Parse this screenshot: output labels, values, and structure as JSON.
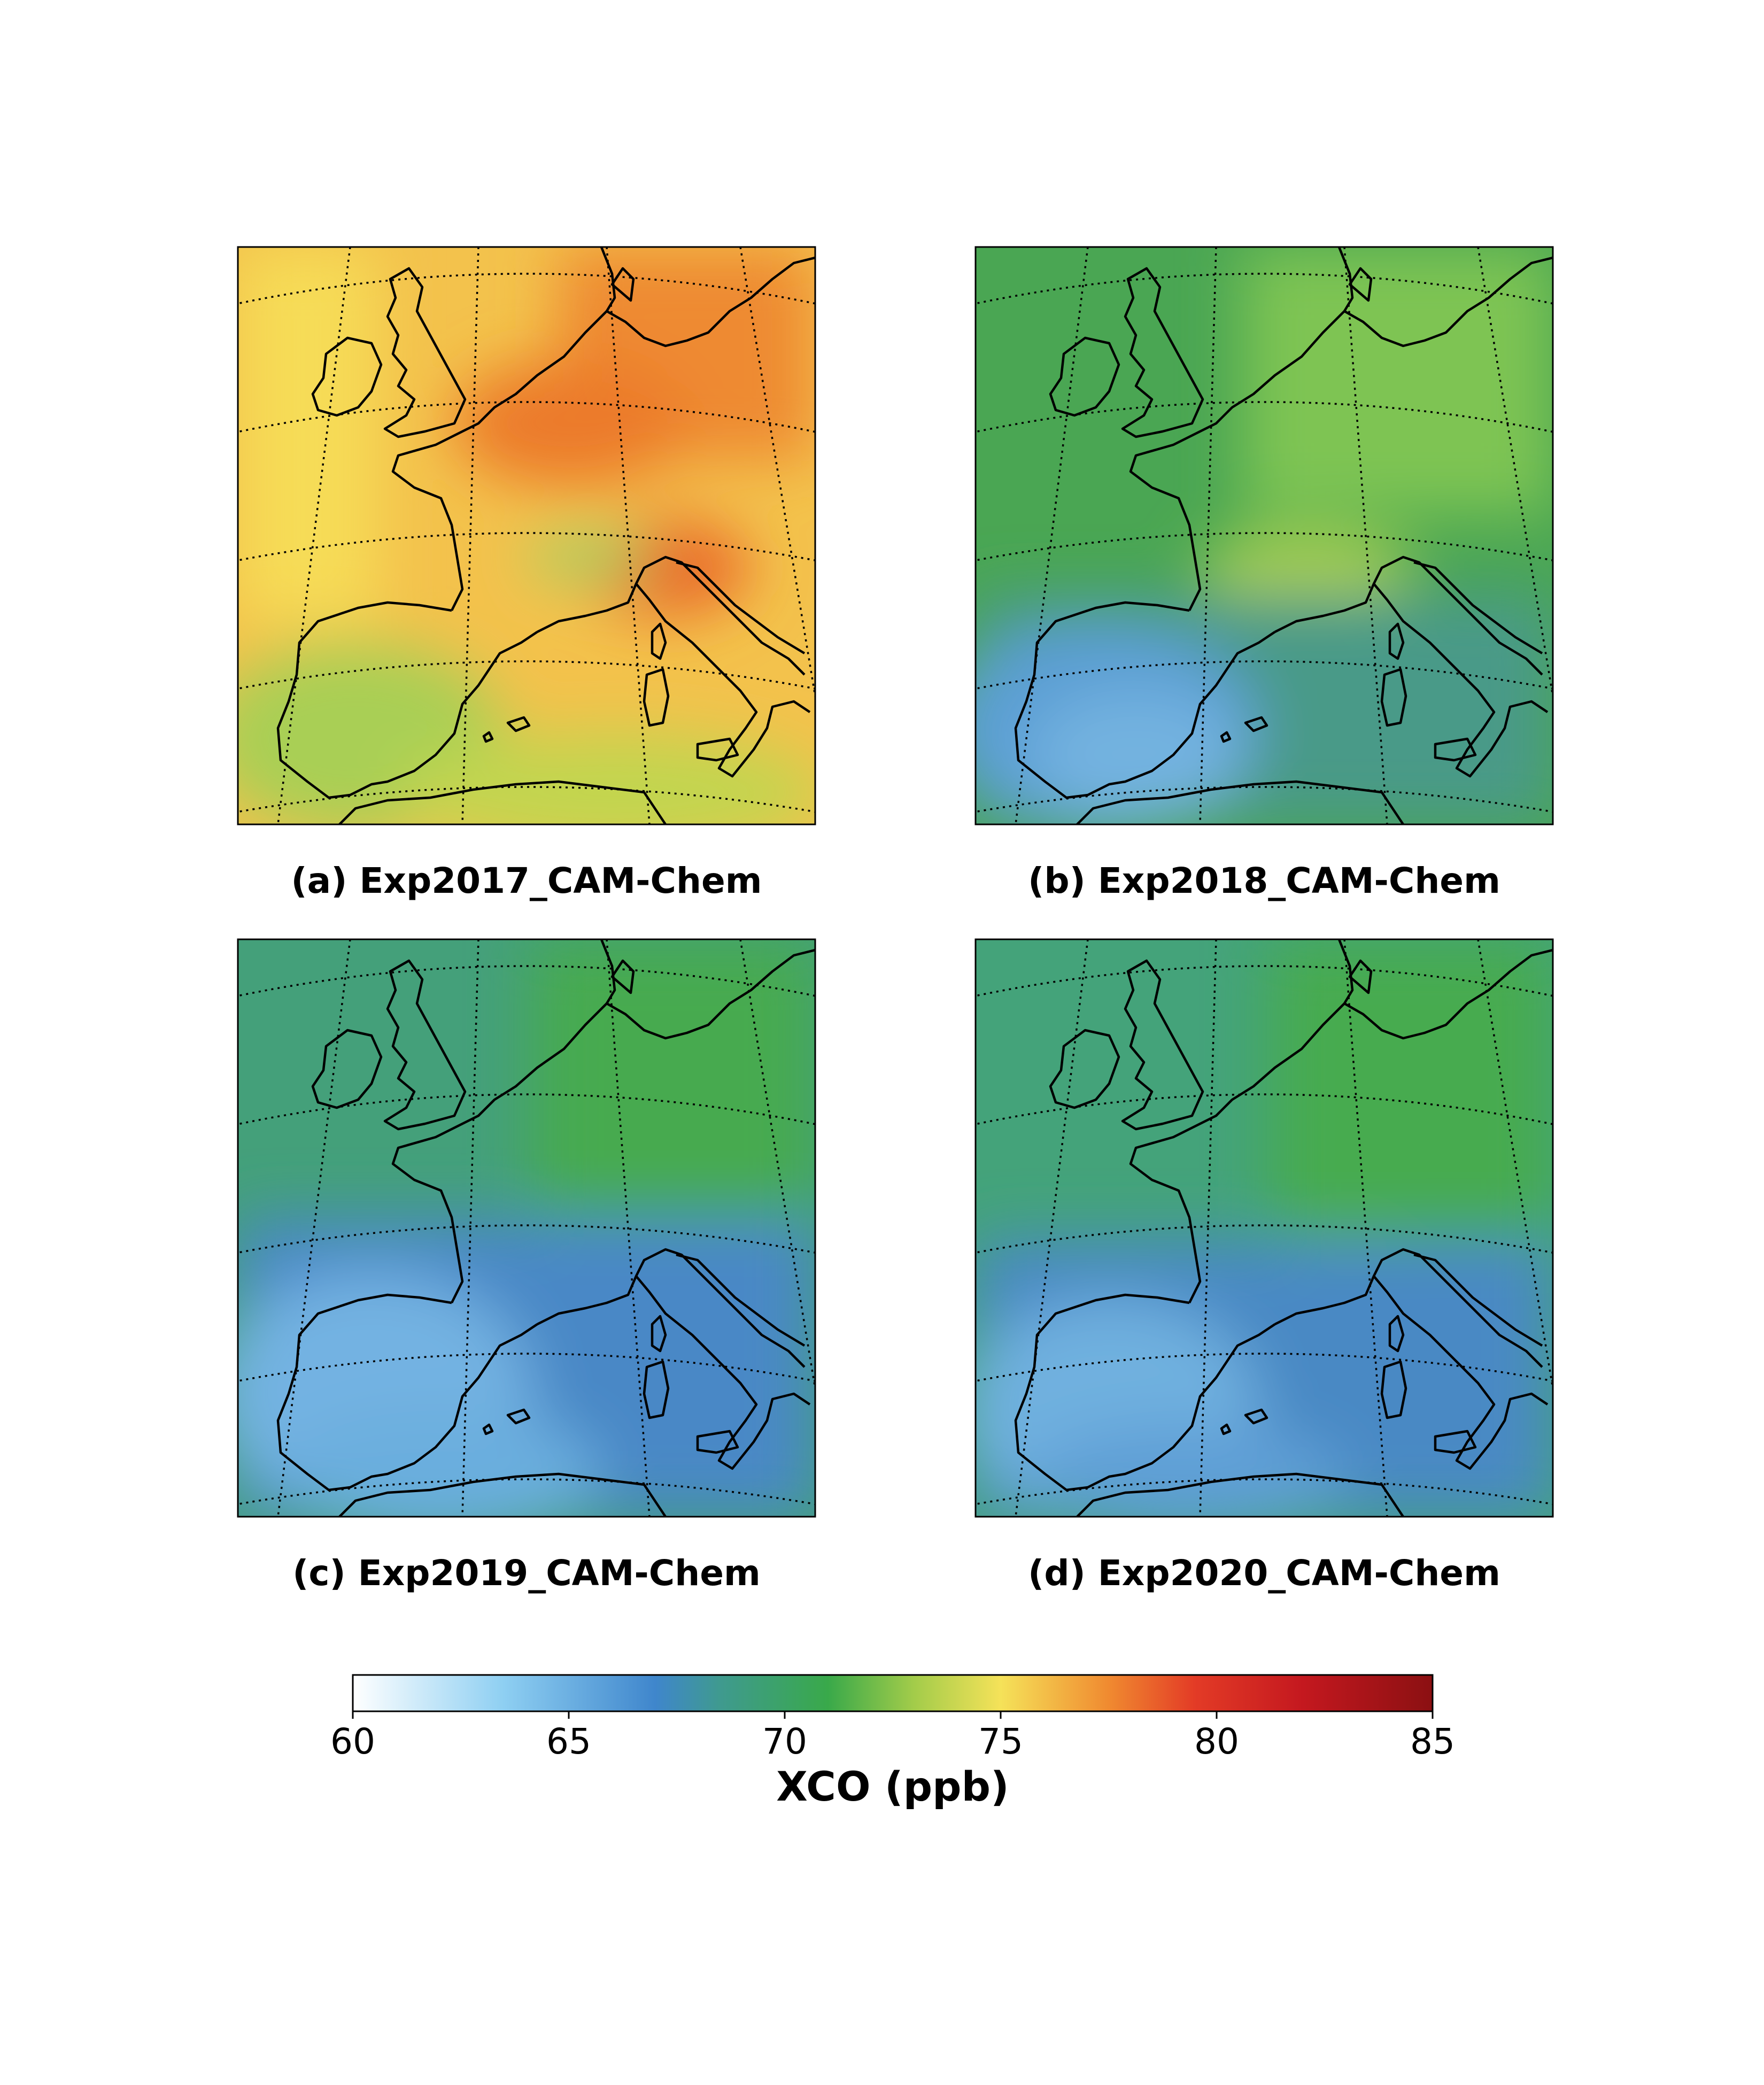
{
  "panels": [
    {
      "caption": "(a) Exp2017_CAM-Chem",
      "fill_palette": "warm",
      "dominant_colors": [
        "#f5d855",
        "#f3a23f",
        "#ed7a2e",
        "#a6cf55"
      ]
    },
    {
      "caption": "(b) Exp2018_CAM-Chem",
      "fill_palette": "green-blue",
      "dominant_colors": [
        "#47ad50",
        "#7fc650",
        "#4f9a86",
        "#6aaedb"
      ]
    },
    {
      "caption": "(c) Exp2019_CAM-Chem",
      "fill_palette": "blue-green",
      "dominant_colors": [
        "#45a056",
        "#4693a5",
        "#4a86c6",
        "#79b5e2"
      ]
    },
    {
      "caption": "(d) Exp2020_CAM-Chem",
      "fill_palette": "blue-green",
      "dominant_colors": [
        "#44a356",
        "#4695a3",
        "#4a87c5",
        "#76b2df"
      ]
    }
  ],
  "colorbar": {
    "label": "XCO (ppb)",
    "min": 60,
    "max": 85,
    "ticks": [
      "60",
      "65",
      "70",
      "75",
      "80",
      "85"
    ],
    "stops": [
      {
        "value": 60,
        "color": "#ffffff"
      },
      {
        "value": 63.5,
        "color": "#8ecff2"
      },
      {
        "value": 67,
        "color": "#3f86cc"
      },
      {
        "value": 68.5,
        "color": "#3f9a8f"
      },
      {
        "value": 71,
        "color": "#39a94a"
      },
      {
        "value": 73,
        "color": "#a3cc4a"
      },
      {
        "value": 75,
        "color": "#f5e259"
      },
      {
        "value": 77.5,
        "color": "#f08a30"
      },
      {
        "value": 79.5,
        "color": "#e33b26"
      },
      {
        "value": 82,
        "color": "#c4181f"
      },
      {
        "value": 85,
        "color": "#8b1012"
      }
    ]
  }
}
